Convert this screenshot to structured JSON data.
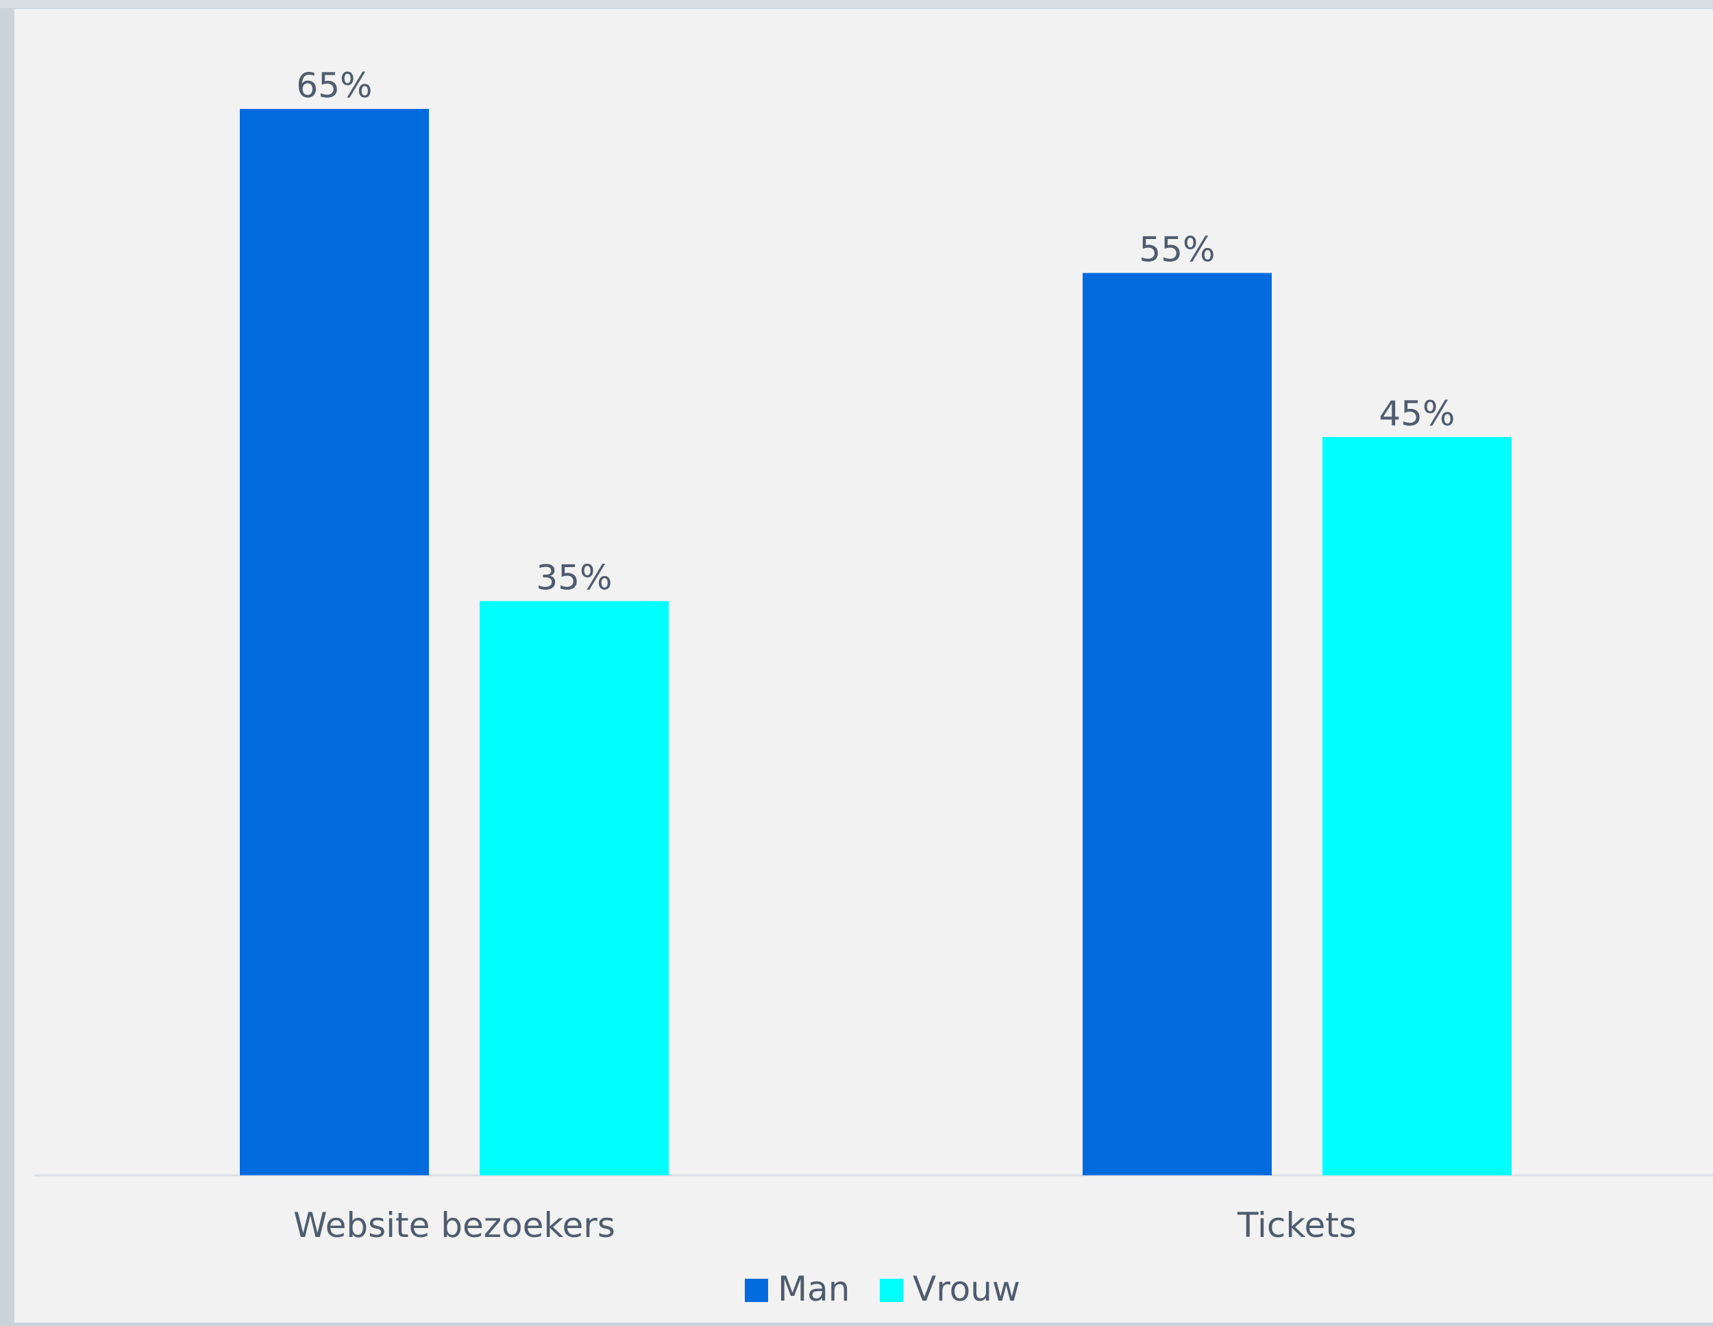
{
  "chart_data": {
    "type": "bar",
    "categories": [
      "Website bezoekers",
      "Tickets"
    ],
    "series": [
      {
        "name": "Man",
        "values": [
          65,
          55
        ],
        "color": "#026cdf"
      },
      {
        "name": "Vrouw",
        "values": [
          35,
          45
        ],
        "color": "#00ffff"
      }
    ],
    "data_labels": [
      [
        "65%",
        "55%"
      ],
      [
        "35%",
        "45%"
      ]
    ],
    "ylim": [
      0,
      65
    ],
    "grid": false,
    "legend_position": "bottom-center",
    "title": "",
    "xlabel": "",
    "ylabel": ""
  },
  "colors": {
    "panel_background": "#f2f2f2",
    "text": "#4f5b6e",
    "baseline": "#dcdfe3"
  }
}
